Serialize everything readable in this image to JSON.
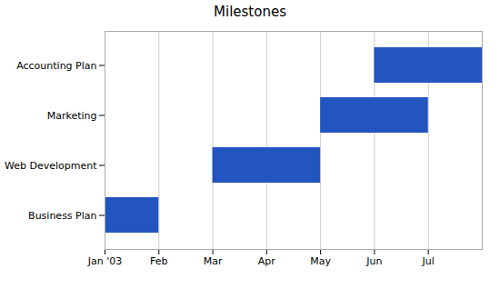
{
  "chart_data": {
    "type": "bar",
    "title": "Milestones",
    "orientation": "horizontal",
    "categories": [
      "Business Plan",
      "Web Development",
      "Marketing",
      "Accounting Plan"
    ],
    "start": [
      0,
      2,
      4,
      5
    ],
    "end": [
      1,
      4,
      6,
      7
    ],
    "color": "#2255c0",
    "xlim": [
      0,
      7
    ],
    "xticks": [
      {
        "value": 0,
        "label": "Jan '03"
      },
      {
        "value": 1,
        "label": "Feb"
      },
      {
        "value": 2,
        "label": "Mar"
      },
      {
        "value": 3,
        "label": "Apr"
      },
      {
        "value": 4,
        "label": "May"
      },
      {
        "value": 5,
        "label": "Jun"
      },
      {
        "value": 6,
        "label": "Jul"
      }
    ],
    "grid": true
  }
}
